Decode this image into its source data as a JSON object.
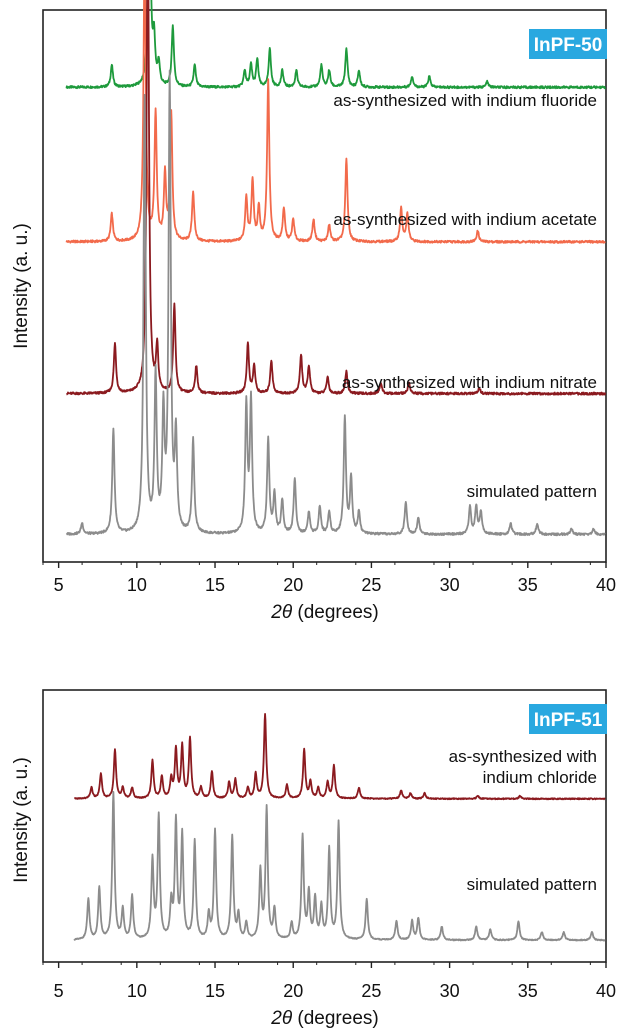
{
  "chart_data": [
    {
      "type": "line",
      "badge": "InPF-50",
      "badge_color": "#29a8e0",
      "xlabel_italic": "2θ",
      "xlabel_rest": " (degrees)",
      "ylabel": "Intensity (a. u.)",
      "xlim": [
        4,
        40
      ],
      "xticks": [
        5,
        10,
        15,
        20,
        25,
        30,
        35,
        40
      ],
      "grid": false,
      "series": [
        {
          "label": "as-synthesized with indium fluoride",
          "color": "#1e9a3c",
          "baseline": 0.86,
          "peaks": [
            [
              8.4,
              0.04
            ],
            [
              10.8,
              0.47
            ],
            [
              11.1,
              0.08
            ],
            [
              11.4,
              0.04
            ],
            [
              12.3,
              0.11
            ],
            [
              13.7,
              0.04
            ],
            [
              16.9,
              0.03
            ],
            [
              17.3,
              0.04
            ],
            [
              17.7,
              0.05
            ],
            [
              18.5,
              0.07
            ],
            [
              19.3,
              0.03
            ],
            [
              20.2,
              0.03
            ],
            [
              21.8,
              0.04
            ],
            [
              22.3,
              0.03
            ],
            [
              23.4,
              0.07
            ],
            [
              24.2,
              0.03
            ],
            [
              27.6,
              0.02
            ],
            [
              28.7,
              0.02
            ],
            [
              32.4,
              0.01
            ]
          ]
        },
        {
          "label": "as-synthesized with indium acetate",
          "color": "#f26a4b",
          "baseline": 0.58,
          "peaks": [
            [
              8.4,
              0.05
            ],
            [
              10.5,
              0.53
            ],
            [
              11.2,
              0.23
            ],
            [
              11.8,
              0.12
            ],
            [
              12.2,
              0.23
            ],
            [
              13.6,
              0.09
            ],
            [
              17.0,
              0.08
            ],
            [
              17.4,
              0.11
            ],
            [
              17.8,
              0.06
            ],
            [
              18.4,
              0.29
            ],
            [
              19.4,
              0.06
            ],
            [
              20.0,
              0.04
            ],
            [
              21.3,
              0.04
            ],
            [
              22.3,
              0.03
            ],
            [
              23.4,
              0.15
            ],
            [
              26.9,
              0.06
            ],
            [
              27.3,
              0.05
            ],
            [
              31.8,
              0.02
            ]
          ]
        },
        {
          "label": "as-synthesized with indium nitrate",
          "color": "#8b1a1f",
          "baseline": 0.305,
          "peaks": [
            [
              8.6,
              0.09
            ],
            [
              10.7,
              0.91
            ],
            [
              11.3,
              0.08
            ],
            [
              12.4,
              0.16
            ],
            [
              13.8,
              0.05
            ],
            [
              17.1,
              0.09
            ],
            [
              17.5,
              0.05
            ],
            [
              18.6,
              0.06
            ],
            [
              20.5,
              0.07
            ],
            [
              21.0,
              0.05
            ],
            [
              22.2,
              0.03
            ],
            [
              23.4,
              0.04
            ],
            [
              25.6,
              0.02
            ],
            [
              27.4,
              0.02
            ],
            [
              31.9,
              0.01
            ]
          ]
        },
        {
          "label": "simulated pattern",
          "color": "#8c8c8c",
          "baseline": 0.05,
          "peaks": [
            [
              6.5,
              0.02
            ],
            [
              8.5,
              0.19
            ],
            [
              10.5,
              0.79
            ],
            [
              11.2,
              0.28
            ],
            [
              11.7,
              0.21
            ],
            [
              12.1,
              0.82
            ],
            [
              12.5,
              0.17
            ],
            [
              13.6,
              0.17
            ],
            [
              17.0,
              0.23
            ],
            [
              17.3,
              0.24
            ],
            [
              18.4,
              0.17
            ],
            [
              18.8,
              0.07
            ],
            [
              19.3,
              0.06
            ],
            [
              20.1,
              0.1
            ],
            [
              21.0,
              0.04
            ],
            [
              21.7,
              0.05
            ],
            [
              22.3,
              0.04
            ],
            [
              23.3,
              0.21
            ],
            [
              23.7,
              0.1
            ],
            [
              24.2,
              0.04
            ],
            [
              27.2,
              0.06
            ],
            [
              28.0,
              0.03
            ],
            [
              31.3,
              0.05
            ],
            [
              31.7,
              0.05
            ],
            [
              32.0,
              0.04
            ],
            [
              33.9,
              0.02
            ],
            [
              35.6,
              0.02
            ],
            [
              37.8,
              0.01
            ],
            [
              39.2,
              0.01
            ]
          ]
        }
      ]
    },
    {
      "type": "line",
      "badge": "InPF-51",
      "badge_color": "#29a8e0",
      "xlabel_italic": "2θ",
      "xlabel_rest": " (degrees)",
      "ylabel": "Intensity (a. u.)",
      "xlim": [
        4,
        40
      ],
      "xticks": [
        5,
        10,
        15,
        20,
        25,
        30,
        35,
        40
      ],
      "grid": false,
      "series": [
        {
          "label_line1": "as-synthesized with",
          "label_line2": "indium chloride",
          "color": "#8b1a1f",
          "baseline": 0.6,
          "peaks": [
            [
              7.1,
              0.04
            ],
            [
              7.7,
              0.09
            ],
            [
              8.6,
              0.18
            ],
            [
              9.1,
              0.04
            ],
            [
              9.7,
              0.04
            ],
            [
              11.0,
              0.14
            ],
            [
              11.6,
              0.08
            ],
            [
              12.2,
              0.07
            ],
            [
              12.5,
              0.18
            ],
            [
              12.9,
              0.19
            ],
            [
              13.4,
              0.22
            ],
            [
              14.1,
              0.04
            ],
            [
              14.8,
              0.1
            ],
            [
              15.9,
              0.06
            ],
            [
              16.3,
              0.07
            ],
            [
              17.1,
              0.04
            ],
            [
              17.6,
              0.09
            ],
            [
              18.2,
              0.31
            ],
            [
              19.6,
              0.05
            ],
            [
              20.7,
              0.18
            ],
            [
              21.1,
              0.06
            ],
            [
              21.6,
              0.04
            ],
            [
              22.2,
              0.06
            ],
            [
              22.6,
              0.12
            ],
            [
              24.2,
              0.04
            ],
            [
              26.9,
              0.03
            ],
            [
              27.5,
              0.02
            ],
            [
              28.4,
              0.02
            ],
            [
              31.8,
              0.01
            ],
            [
              34.5,
              0.01
            ]
          ]
        },
        {
          "label": "simulated pattern",
          "color": "#8c8c8c",
          "baseline": 0.08,
          "peaks": [
            [
              6.9,
              0.15
            ],
            [
              7.6,
              0.19
            ],
            [
              8.5,
              0.54
            ],
            [
              9.1,
              0.11
            ],
            [
              9.7,
              0.16
            ],
            [
              11.0,
              0.29
            ],
            [
              11.4,
              0.45
            ],
            [
              12.2,
              0.13
            ],
            [
              12.5,
              0.43
            ],
            [
              12.9,
              0.38
            ],
            [
              13.7,
              0.36
            ],
            [
              14.6,
              0.09
            ],
            [
              15.0,
              0.4
            ],
            [
              16.1,
              0.38
            ],
            [
              16.5,
              0.09
            ],
            [
              17.0,
              0.06
            ],
            [
              17.9,
              0.25
            ],
            [
              18.3,
              0.48
            ],
            [
              18.8,
              0.11
            ],
            [
              19.9,
              0.06
            ],
            [
              20.6,
              0.38
            ],
            [
              21.0,
              0.17
            ],
            [
              21.4,
              0.15
            ],
            [
              21.8,
              0.12
            ],
            [
              22.3,
              0.33
            ],
            [
              22.9,
              0.43
            ],
            [
              24.7,
              0.15
            ],
            [
              26.6,
              0.07
            ],
            [
              27.6,
              0.07
            ],
            [
              28.0,
              0.08
            ],
            [
              29.5,
              0.05
            ],
            [
              31.7,
              0.05
            ],
            [
              32.6,
              0.04
            ],
            [
              34.4,
              0.07
            ],
            [
              35.9,
              0.03
            ],
            [
              37.3,
              0.03
            ],
            [
              39.1,
              0.03
            ]
          ]
        }
      ]
    }
  ]
}
